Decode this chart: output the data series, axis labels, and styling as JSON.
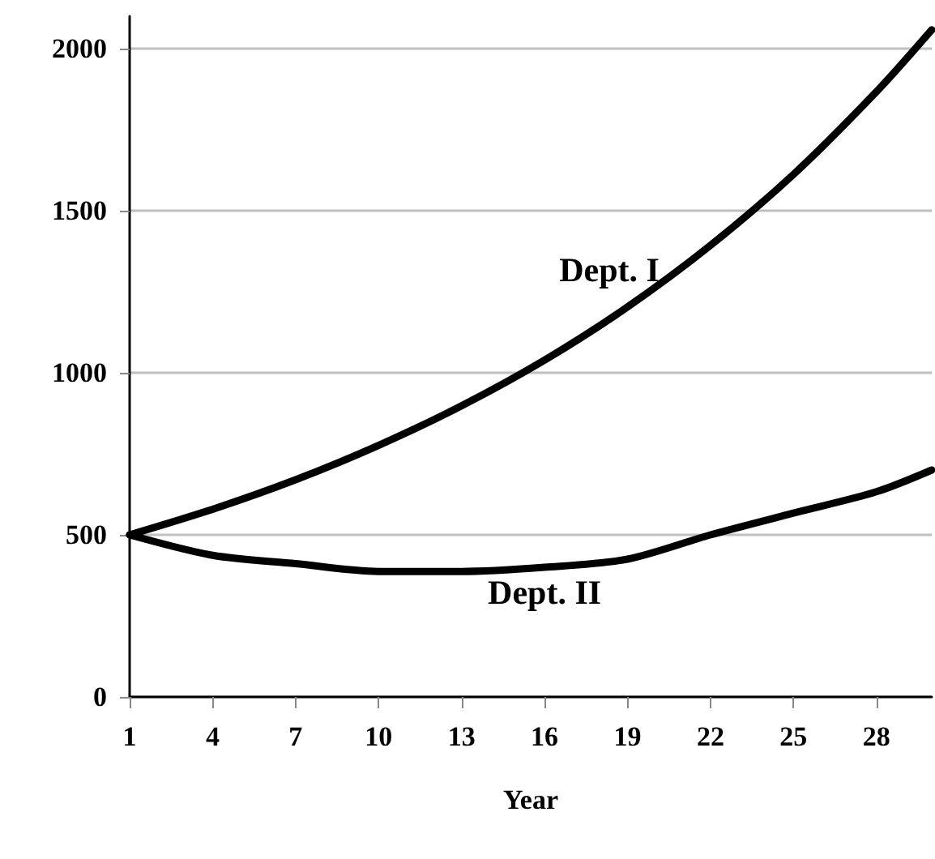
{
  "chart_data": {
    "type": "line",
    "xlabel": "Year",
    "x": [
      1,
      4,
      7,
      10,
      13,
      16,
      19,
      22,
      25,
      28,
      30
    ],
    "series": [
      {
        "name": "Dept. I",
        "color": "#000000",
        "values": [
          500,
          579,
          670,
          776,
          898,
          1039,
          1203,
          1393,
          1612,
          1867,
          2058
        ]
      },
      {
        "name": "Dept. II",
        "color": "#000000",
        "values": [
          500,
          437,
          411,
          387,
          387,
          400,
          425,
          500,
          567,
          633,
          700
        ]
      }
    ],
    "xlim": [
      1,
      30
    ],
    "xticks": [
      1,
      4,
      7,
      10,
      13,
      16,
      19,
      22,
      25,
      28
    ],
    "ylim": [
      0,
      2100
    ],
    "yticks": [
      0,
      500,
      1000,
      1500,
      2000
    ],
    "grid": "y",
    "legend": false,
    "marker": "none",
    "line_style": "solid"
  }
}
